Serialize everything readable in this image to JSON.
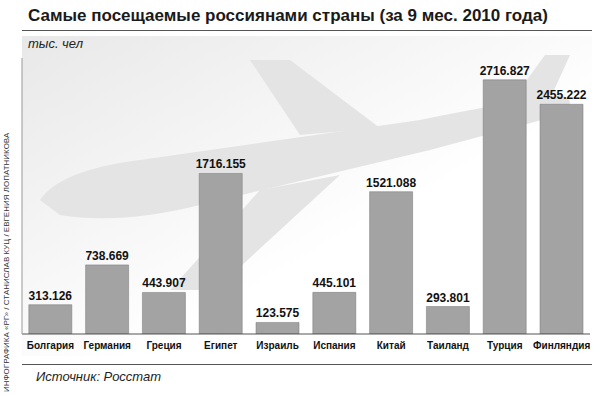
{
  "chart_data": {
    "type": "bar",
    "title": "Самые посещаемые россиянами страны (за 9 мес. 2010 года)",
    "subtitle": "тыс. чел",
    "source": "Источник: Росстат",
    "credit": "ИНФОГРАФИКА «РГ» / СТАНИСЛАВ КУЦ / ЕВГЕНИЯ ЛОПАТНИКОВА",
    "categories": [
      "Болгария",
      "Германия",
      "Греция",
      "Египет",
      "Израиль",
      "Испания",
      "Китай",
      "Таиланд",
      "Турция",
      "Финляндия"
    ],
    "values": [
      313.126,
      738.669,
      443.907,
      1716.155,
      123.575,
      445.101,
      1521.088,
      293.801,
      2716.827,
      2455.222
    ],
    "color": "#a3a3a3",
    "ylim": [
      0,
      2950
    ],
    "yticks": [],
    "data_labels": true,
    "tick_labels": "x",
    "grid": false
  }
}
